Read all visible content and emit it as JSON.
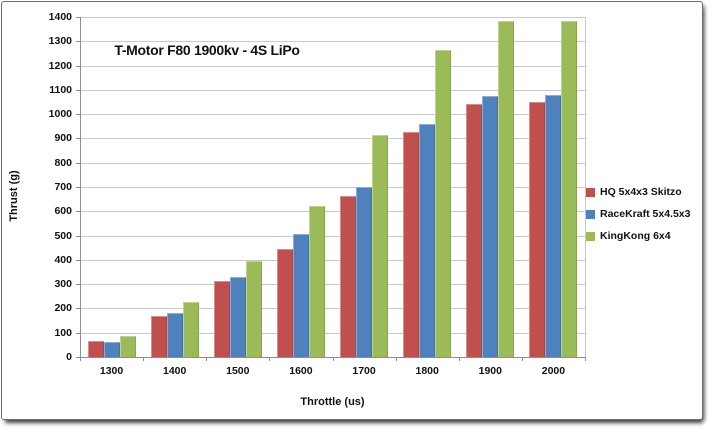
{
  "frame": {
    "background": "#ffffff",
    "border_color": "#6e6e6e"
  },
  "chart_data": {
    "type": "bar",
    "title": "T-Motor F80 1900kv - 4S LiPo",
    "xlabel": "Throttle (us)",
    "ylabel": "Thrust (g)",
    "categories": [
      "1300",
      "1400",
      "1500",
      "1600",
      "1700",
      "1800",
      "1900",
      "2000"
    ],
    "series": [
      {
        "name": "HQ 5x4x3 Skitzo",
        "color": "#c0504d",
        "values": [
          65,
          170,
          315,
          445,
          665,
          925,
          1040,
          1050
        ]
      },
      {
        "name": "RaceKraft 5x4.5x3",
        "color": "#4f81bd",
        "values": [
          60,
          180,
          330,
          505,
          700,
          960,
          1075,
          1080
        ]
      },
      {
        "name": "KingKong 6x4",
        "color": "#9bbb59",
        "values": [
          85,
          225,
          395,
          620,
          915,
          1265,
          1385,
          1385
        ]
      }
    ],
    "ylim": [
      0,
      1400
    ],
    "ytick_step": 100,
    "grid": true,
    "legend_position": "right",
    "gridline_color": "#c9c9c9",
    "axis_color": "#8e8e8e",
    "text_color": "#111111"
  }
}
